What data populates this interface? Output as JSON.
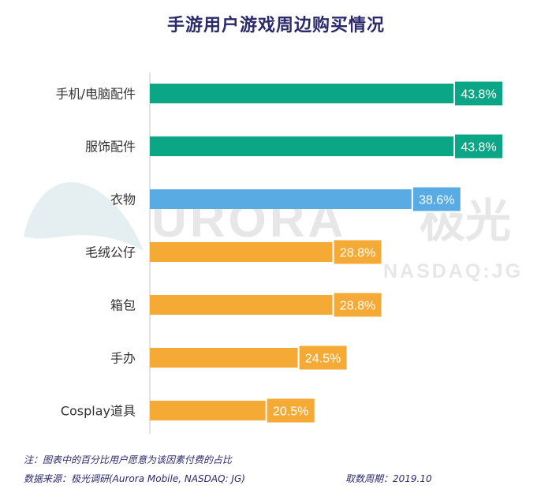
{
  "title": "手游用户游戏周边购买情况",
  "watermark": {
    "brand": "URORA",
    "brand_cn": "极光",
    "ticker": "NASDAQ:JG"
  },
  "colors": {
    "title": "#2b2a6b",
    "green": "#0aa685",
    "blue": "#58abe3",
    "orange": "#f5aa36",
    "axis": "#d9d9d9",
    "label": "#333333"
  },
  "chart_data": {
    "type": "bar",
    "orientation": "horizontal",
    "categories": [
      "手机/电脑配件",
      "服饰配件",
      "衣物",
      "毛绒公仔",
      "箱包",
      "手办",
      "Cosplay道具"
    ],
    "values": [
      43.8,
      43.8,
      38.6,
      28.8,
      28.8,
      24.5,
      20.5
    ],
    "value_labels": [
      "43.8%",
      "43.8%",
      "38.6%",
      "28.8%",
      "28.8%",
      "24.5%",
      "20.5%"
    ],
    "bar_colors": [
      "#0aa685",
      "#0aa685",
      "#58abe3",
      "#f5aa36",
      "#f5aa36",
      "#f5aa36",
      "#f5aa36"
    ],
    "unit": "%",
    "xlim": [
      0,
      43.8
    ],
    "grid": false,
    "legend": "none"
  },
  "footer": {
    "note": "注：图表中的百分比用户愿意为该因素付费的占比",
    "source": "数据来源：极光调研(Aurora Mobile, NASDAQ: JG)",
    "period": "取数周期：2019.10"
  }
}
